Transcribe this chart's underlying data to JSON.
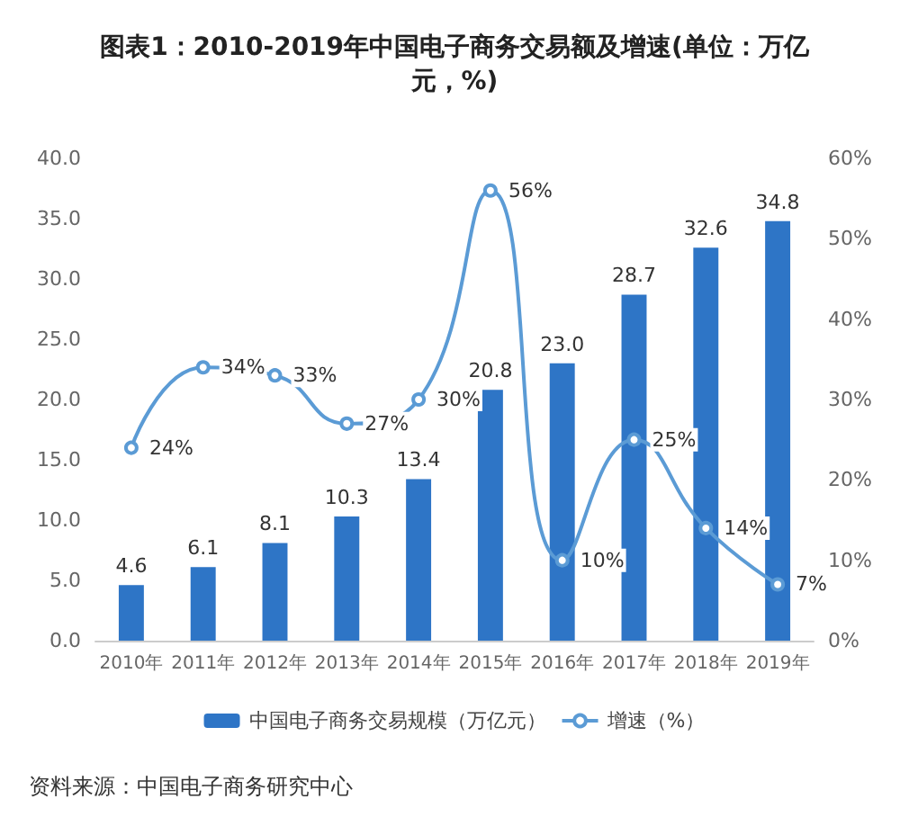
{
  "chart_data": {
    "type": "bar",
    "title": "图表1：2010-2019年中国电子商务交易额及增速(单位：万亿元，%)",
    "categories": [
      "2010年",
      "2011年",
      "2012年",
      "2013年",
      "2014年",
      "2015年",
      "2016年",
      "2017年",
      "2018年",
      "2019年"
    ],
    "series": [
      {
        "name": "中国电子商务交易规模（万亿元）",
        "color": "#2e75c6",
        "values": [
          4.6,
          6.1,
          8.1,
          10.3,
          13.4,
          20.8,
          23.0,
          28.7,
          32.6,
          34.8
        ],
        "value_labels": [
          "4.6",
          "6.1",
          "8.1",
          "10.3",
          "13.4",
          "20.8",
          "23.0",
          "28.7",
          "32.6",
          "34.8"
        ]
      },
      {
        "name": "增速（%）",
        "type": "line",
        "axis": "y2",
        "color": "#5b9bd5",
        "values": [
          24,
          34,
          33,
          27,
          30,
          56,
          10,
          25,
          14,
          7
        ],
        "value_labels": [
          "24%",
          "34%",
          "33%",
          "27%",
          "30%",
          "56%",
          "10%",
          "25%",
          "14%",
          "7%"
        ]
      }
    ],
    "ylim": [
      0,
      40
    ],
    "yticks": [
      {
        "value": 0,
        "label": "0.0"
      },
      {
        "value": 5,
        "label": "5.0"
      },
      {
        "value": 10,
        "label": "10.0"
      },
      {
        "value": 15,
        "label": "15.0"
      },
      {
        "value": 20,
        "label": "20.0"
      },
      {
        "value": 25,
        "label": "25.0"
      },
      {
        "value": 30,
        "label": "30.0"
      },
      {
        "value": 35,
        "label": "35.0"
      },
      {
        "value": 40,
        "label": "40.0"
      }
    ],
    "y2lim": [
      0,
      60
    ],
    "y2ticks": [
      {
        "value": 0,
        "label": "0%"
      },
      {
        "value": 10,
        "label": "10%"
      },
      {
        "value": 20,
        "label": "20%"
      },
      {
        "value": 30,
        "label": "30%"
      },
      {
        "value": 40,
        "label": "40%"
      },
      {
        "value": 50,
        "label": "50%"
      },
      {
        "value": 60,
        "label": "60%"
      }
    ],
    "marker": "circle",
    "grid": false,
    "legend": "bottom",
    "annotations": [
      "资料来源：中国电子商务研究中心"
    ]
  }
}
